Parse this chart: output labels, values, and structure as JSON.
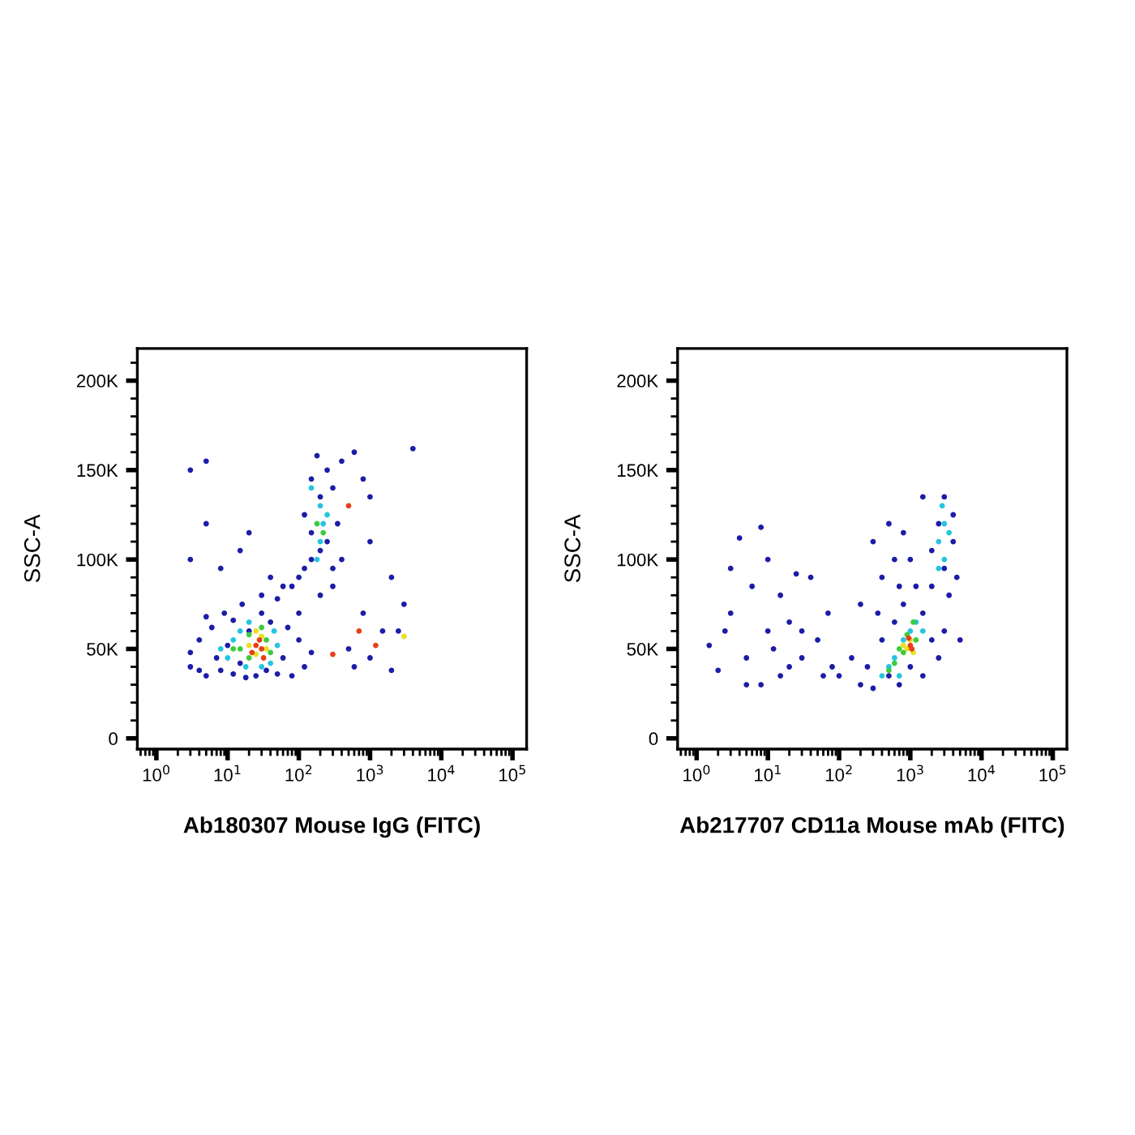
{
  "chart_data": [
    {
      "type": "scatter",
      "xlabel": "Ab180307 Mouse IgG (FITC)",
      "ylabel": "SSC-A",
      "log": "x",
      "marker": "circle",
      "xlim": [
        0.54,
        158000
      ],
      "ylim": [
        -6000,
        218000
      ],
      "xticks": [
        {
          "value": 1,
          "label": "10$^{0}$"
        },
        {
          "value": 10,
          "label": "10$^{1}$"
        },
        {
          "value": 100,
          "label": "10$^{2}$"
        },
        {
          "value": 1000,
          "label": "10$^{3}$"
        },
        {
          "value": 10000,
          "label": "10$^{4}$"
        },
        {
          "value": 100000,
          "label": "10$^{5}$"
        }
      ],
      "yticks": [
        0,
        {
          "value": 50000,
          "label": "50K"
        },
        {
          "value": 100000,
          "label": "100K"
        },
        {
          "value": 150000,
          "label": "150K"
        },
        {
          "value": 200000,
          "label": "200K"
        }
      ],
      "series": [
        {
          "color": "#1c1ca8",
          "x": [
            3,
            4,
            5,
            6,
            7,
            8,
            9,
            10,
            12,
            12,
            15,
            16,
            18,
            20,
            25,
            30,
            35,
            40,
            50,
            50,
            60,
            70,
            80,
            100,
            120,
            150,
            3,
            5,
            4,
            100,
            80,
            100,
            120,
            60,
            150,
            200,
            300,
            250,
            150,
            350,
            120,
            200,
            300,
            150,
            250,
            180,
            400,
            300,
            400,
            200,
            40,
            30,
            5,
            5,
            3,
            8,
            20,
            15,
            600,
            800,
            1000,
            1000,
            2000,
            3000,
            1500,
            1000,
            600,
            2000,
            2500,
            4000,
            800,
            500,
            3
          ],
          "values": [
            40000,
            55000,
            35000,
            62000,
            45000,
            38000,
            70000,
            52000,
            36000,
            66000,
            42000,
            75000,
            34000,
            60000,
            35000,
            70000,
            38000,
            65000,
            36000,
            78000,
            45000,
            62000,
            35000,
            55000,
            40000,
            48000,
            48000,
            68000,
            38000,
            70000,
            85000,
            90000,
            95000,
            85000,
            100000,
            105000,
            95000,
            110000,
            115000,
            120000,
            125000,
            135000,
            140000,
            145000,
            150000,
            158000,
            155000,
            85000,
            100000,
            80000,
            90000,
            80000,
            155000,
            120000,
            100000,
            95000,
            115000,
            105000,
            160000,
            145000,
            135000,
            110000,
            90000,
            75000,
            60000,
            45000,
            40000,
            38000,
            60000,
            162000,
            70000,
            50000,
            150000
          ]
        },
        {
          "color": "#25c4e0",
          "x": [
            10,
            12,
            15,
            18,
            20,
            40,
            45,
            50,
            30,
            8,
            200,
            220,
            180,
            250,
            200,
            150
          ],
          "values": [
            45000,
            55000,
            60000,
            40000,
            65000,
            42000,
            60000,
            52000,
            40000,
            50000,
            110000,
            120000,
            100000,
            125000,
            130000,
            140000
          ]
        },
        {
          "color": "#3ccc3c",
          "x": [
            15,
            20,
            20,
            30,
            40,
            35,
            12,
            220,
            180
          ],
          "values": [
            50000,
            45000,
            58000,
            62000,
            48000,
            55000,
            50000,
            115000,
            120000
          ]
        },
        {
          "color": "#e8e020",
          "x": [
            20,
            25,
            30,
            35,
            25,
            3000
          ],
          "values": [
            52000,
            47000,
            57000,
            50000,
            60000,
            57000
          ]
        },
        {
          "color": "#e8401a",
          "x": [
            25,
            30,
            28,
            22,
            32,
            700,
            1200,
            500,
            300
          ],
          "values": [
            52000,
            50000,
            55000,
            48000,
            45000,
            60000,
            52000,
            130000,
            47000
          ]
        }
      ]
    },
    {
      "type": "scatter",
      "xlabel": "Ab217707 CD11a Mouse mAb (FITC)",
      "ylabel": "SSC-A",
      "log": "x",
      "marker": "circle",
      "xlim": [
        0.54,
        158000
      ],
      "ylim": [
        -6000,
        218000
      ],
      "xticks": [
        {
          "value": 1,
          "label": "10$^{0}$"
        },
        {
          "value": 10,
          "label": "10$^{1}$"
        },
        {
          "value": 100,
          "label": "10$^{2}$"
        },
        {
          "value": 1000,
          "label": "10$^{3}$"
        },
        {
          "value": 10000,
          "label": "10$^{4}$"
        },
        {
          "value": 100000,
          "label": "10$^{5}$"
        }
      ],
      "yticks": [
        0,
        {
          "value": 50000,
          "label": "50K"
        },
        {
          "value": 100000,
          "label": "100K"
        },
        {
          "value": 150000,
          "label": "150K"
        },
        {
          "value": 200000,
          "label": "200K"
        }
      ],
      "series": [
        {
          "color": "#1c1ca8",
          "x": [
            200,
            250,
            300,
            400,
            500,
            600,
            700,
            800,
            1000,
            1200,
            1500,
            1500,
            2000,
            2500,
            3000,
            3500,
            3000,
            4000,
            2500,
            3000,
            4000,
            2000,
            4500,
            400,
            300,
            600,
            800,
            1500,
            500,
            200,
            150,
            100,
            1000,
            2000,
            700,
            350,
            5000,
            1.5,
            2,
            3,
            3,
            4,
            5,
            6,
            8,
            8,
            10,
            10,
            12,
            15,
            20,
            25,
            30,
            40,
            50,
            60,
            70,
            80,
            5,
            15,
            30,
            2.5,
            20
          ],
          "values": [
            30000,
            40000,
            28000,
            55000,
            35000,
            65000,
            30000,
            75000,
            40000,
            85000,
            35000,
            70000,
            55000,
            45000,
            60000,
            80000,
            95000,
            110000,
            120000,
            135000,
            125000,
            105000,
            90000,
            90000,
            110000,
            100000,
            115000,
            135000,
            120000,
            75000,
            45000,
            35000,
            100000,
            85000,
            85000,
            70000,
            55000,
            52000,
            38000,
            95000,
            70000,
            112000,
            45000,
            85000,
            118000,
            30000,
            100000,
            60000,
            50000,
            35000,
            65000,
            92000,
            45000,
            90000,
            55000,
            35000,
            70000,
            40000,
            30000,
            80000,
            60000,
            60000,
            40000
          ]
        },
        {
          "color": "#25c4e0",
          "x": [
            500,
            600,
            800,
            1000,
            1200,
            700,
            400,
            1500,
            3000,
            3000,
            2500,
            3500,
            2800,
            2500
          ],
          "values": [
            40000,
            45000,
            55000,
            60000,
            65000,
            35000,
            35000,
            60000,
            100000,
            120000,
            110000,
            115000,
            130000,
            95000
          ]
        },
        {
          "color": "#3ccc3c",
          "x": [
            600,
            800,
            900,
            1200,
            500,
            700,
            1100
          ],
          "values": [
            42000,
            48000,
            58000,
            55000,
            38000,
            50000,
            65000
          ]
        },
        {
          "color": "#e8e020",
          "x": [
            900,
            1000,
            800,
            1100
          ],
          "values": [
            50000,
            55000,
            52000,
            48000
          ]
        },
        {
          "color": "#e8401a",
          "x": [
            1000,
            950,
            1050
          ],
          "values": [
            52000,
            56000,
            50000
          ]
        }
      ]
    }
  ]
}
